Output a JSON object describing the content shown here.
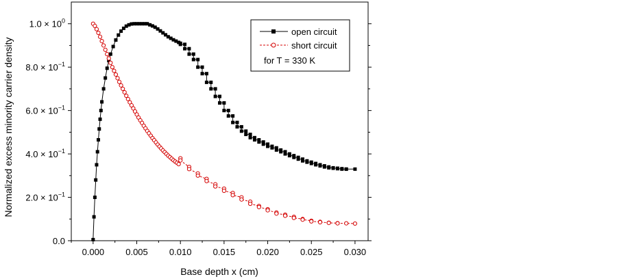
{
  "chart_data": {
    "type": "line",
    "xlabel": "Base depth x (cm)",
    "ylabel": "Normalized excess minority carrier density",
    "xlim": [
      -0.0025,
      0.0315
    ],
    "ylim": [
      0,
      1.1
    ],
    "x_ticks": [
      0.0,
      0.005,
      0.01,
      0.015,
      0.02,
      0.025,
      0.03
    ],
    "x_tick_labels": [
      "0.000",
      "0.005",
      "0.010",
      "0.015",
      "0.020",
      "0.025",
      "0.030"
    ],
    "y_ticks": [
      {
        "value": 0.0,
        "label": "0.0",
        "mantissa": "",
        "exponent": ""
      },
      {
        "value": 0.2,
        "label": "",
        "mantissa": "2.0 × 10",
        "exponent": "−1"
      },
      {
        "value": 0.4,
        "label": "",
        "mantissa": "4.0 × 10",
        "exponent": "−1"
      },
      {
        "value": 0.6,
        "label": "",
        "mantissa": "6.0 × 10",
        "exponent": "−1"
      },
      {
        "value": 0.8,
        "label": "",
        "mantissa": "8.0 × 10",
        "exponent": "−1"
      },
      {
        "value": 1.0,
        "label": "",
        "mantissa": "1.0 × 10",
        "exponent": "0"
      }
    ],
    "grid": false,
    "legend_position": "top-right",
    "annotation": "for T = 330 K",
    "series": [
      {
        "name": "open circuit",
        "color": "#000000",
        "marker": "filled-square",
        "line_style": "solid",
        "points": [
          [
            0.0,
            0.005
          ],
          [
            0.0001,
            0.11
          ],
          [
            0.0002,
            0.2
          ],
          [
            0.0003,
            0.28
          ],
          [
            0.0004,
            0.35
          ],
          [
            0.0005,
            0.41
          ],
          [
            0.0006,
            0.465
          ],
          [
            0.0007,
            0.515
          ],
          [
            0.0008,
            0.56
          ],
          [
            0.0009,
            0.6
          ],
          [
            0.001,
            0.64
          ],
          [
            0.0012,
            0.7
          ],
          [
            0.0014,
            0.75
          ],
          [
            0.0016,
            0.795
          ],
          [
            0.0018,
            0.83
          ],
          [
            0.002,
            0.86
          ],
          [
            0.0023,
            0.895
          ],
          [
            0.0026,
            0.925
          ],
          [
            0.0029,
            0.948
          ],
          [
            0.0032,
            0.966
          ],
          [
            0.0035,
            0.979
          ],
          [
            0.0038,
            0.989
          ],
          [
            0.0041,
            0.995
          ],
          [
            0.0044,
            0.999
          ],
          [
            0.0047,
            1.0
          ],
          [
            0.005,
            1.0
          ],
          [
            0.0053,
            1.0
          ],
          [
            0.0056,
            1.0
          ],
          [
            0.0059,
            1.0
          ],
          [
            0.0062,
            1.0
          ],
          [
            0.0065,
            0.995
          ],
          [
            0.0068,
            0.99
          ],
          [
            0.0071,
            0.984
          ],
          [
            0.0074,
            0.976
          ],
          [
            0.0077,
            0.967
          ],
          [
            0.008,
            0.958
          ],
          [
            0.0083,
            0.949
          ],
          [
            0.0086,
            0.94
          ],
          [
            0.0089,
            0.933
          ],
          [
            0.0092,
            0.926
          ],
          [
            0.0095,
            0.92
          ],
          [
            0.0098,
            0.914
          ],
          [
            0.01,
            0.91
          ],
          [
            0.01,
            0.905
          ],
          [
            0.0105,
            0.905
          ],
          [
            0.0105,
            0.885
          ],
          [
            0.011,
            0.885
          ],
          [
            0.011,
            0.86
          ],
          [
            0.0115,
            0.86
          ],
          [
            0.0115,
            0.835
          ],
          [
            0.012,
            0.835
          ],
          [
            0.012,
            0.8
          ],
          [
            0.0125,
            0.8
          ],
          [
            0.0125,
            0.77
          ],
          [
            0.013,
            0.77
          ],
          [
            0.013,
            0.73
          ],
          [
            0.0135,
            0.73
          ],
          [
            0.0135,
            0.7
          ],
          [
            0.014,
            0.7
          ],
          [
            0.014,
            0.665
          ],
          [
            0.0145,
            0.665
          ],
          [
            0.0145,
            0.635
          ],
          [
            0.015,
            0.635
          ],
          [
            0.015,
            0.6
          ],
          [
            0.0155,
            0.6
          ],
          [
            0.0155,
            0.575
          ],
          [
            0.016,
            0.575
          ],
          [
            0.016,
            0.545
          ],
          [
            0.0165,
            0.545
          ],
          [
            0.0165,
            0.525
          ],
          [
            0.017,
            0.525
          ],
          [
            0.017,
            0.505
          ],
          [
            0.0175,
            0.505
          ],
          [
            0.0175,
            0.49
          ],
          [
            0.018,
            0.49
          ],
          [
            0.018,
            0.475
          ],
          [
            0.0185,
            0.475
          ],
          [
            0.0185,
            0.465
          ],
          [
            0.019,
            0.465
          ],
          [
            0.019,
            0.455
          ],
          [
            0.0195,
            0.455
          ],
          [
            0.0195,
            0.445
          ],
          [
            0.02,
            0.445
          ],
          [
            0.02,
            0.435
          ],
          [
            0.0205,
            0.435
          ],
          [
            0.0205,
            0.428
          ],
          [
            0.021,
            0.428
          ],
          [
            0.021,
            0.418
          ],
          [
            0.0215,
            0.418
          ],
          [
            0.0215,
            0.41
          ],
          [
            0.022,
            0.41
          ],
          [
            0.022,
            0.4
          ],
          [
            0.0225,
            0.4
          ],
          [
            0.0225,
            0.392
          ],
          [
            0.023,
            0.392
          ],
          [
            0.023,
            0.384
          ],
          [
            0.0235,
            0.384
          ],
          [
            0.0235,
            0.376
          ],
          [
            0.024,
            0.376
          ],
          [
            0.024,
            0.368
          ],
          [
            0.0245,
            0.368
          ],
          [
            0.0245,
            0.362
          ],
          [
            0.025,
            0.362
          ],
          [
            0.025,
            0.356
          ],
          [
            0.0255,
            0.356
          ],
          [
            0.0255,
            0.35
          ],
          [
            0.026,
            0.35
          ],
          [
            0.026,
            0.345
          ],
          [
            0.0265,
            0.345
          ],
          [
            0.0265,
            0.34
          ],
          [
            0.027,
            0.34
          ],
          [
            0.027,
            0.336
          ],
          [
            0.0275,
            0.336
          ],
          [
            0.0275,
            0.334
          ],
          [
            0.028,
            0.334
          ],
          [
            0.028,
            0.332
          ],
          [
            0.0285,
            0.332
          ],
          [
            0.0285,
            0.33
          ],
          [
            0.029,
            0.33
          ],
          [
            0.029,
            0.33
          ],
          [
            0.03,
            0.33
          ]
        ]
      },
      {
        "name": "short circuit",
        "color": "#d40000",
        "marker": "open-circle",
        "line_style": "dashed",
        "points": [
          [
            0.0,
            1.0
          ],
          [
            0.0002,
            0.99
          ],
          [
            0.0004,
            0.975
          ],
          [
            0.0006,
            0.958
          ],
          [
            0.0008,
            0.94
          ],
          [
            0.001,
            0.92
          ],
          [
            0.0012,
            0.9
          ],
          [
            0.0014,
            0.88
          ],
          [
            0.0016,
            0.86
          ],
          [
            0.0018,
            0.84
          ],
          [
            0.002,
            0.82
          ],
          [
            0.0022,
            0.8
          ],
          [
            0.0024,
            0.783
          ],
          [
            0.0026,
            0.766
          ],
          [
            0.0028,
            0.749
          ],
          [
            0.003,
            0.732
          ],
          [
            0.0032,
            0.716
          ],
          [
            0.0034,
            0.7
          ],
          [
            0.0036,
            0.684
          ],
          [
            0.0038,
            0.668
          ],
          [
            0.004,
            0.653
          ],
          [
            0.0042,
            0.638
          ],
          [
            0.0044,
            0.624
          ],
          [
            0.0046,
            0.61
          ],
          [
            0.0048,
            0.596
          ],
          [
            0.005,
            0.582
          ],
          [
            0.0052,
            0.568
          ],
          [
            0.0054,
            0.555
          ],
          [
            0.0056,
            0.543
          ],
          [
            0.0058,
            0.53
          ],
          [
            0.006,
            0.518
          ],
          [
            0.0062,
            0.506
          ],
          [
            0.0064,
            0.495
          ],
          [
            0.0066,
            0.484
          ],
          [
            0.0068,
            0.473
          ],
          [
            0.007,
            0.463
          ],
          [
            0.0072,
            0.453
          ],
          [
            0.0074,
            0.443
          ],
          [
            0.0076,
            0.434
          ],
          [
            0.0078,
            0.425
          ],
          [
            0.008,
            0.416
          ],
          [
            0.0082,
            0.408
          ],
          [
            0.0084,
            0.4
          ],
          [
            0.0086,
            0.392
          ],
          [
            0.0088,
            0.385
          ],
          [
            0.009,
            0.378
          ],
          [
            0.0092,
            0.371
          ],
          [
            0.0094,
            0.365
          ],
          [
            0.0096,
            0.359
          ],
          [
            0.0098,
            0.353
          ],
          [
            0.01,
            0.38
          ],
          [
            0.01,
            0.37
          ],
          [
            0.011,
            0.34
          ],
          [
            0.011,
            0.33
          ],
          [
            0.012,
            0.31
          ],
          [
            0.012,
            0.3
          ],
          [
            0.013,
            0.285
          ],
          [
            0.013,
            0.275
          ],
          [
            0.014,
            0.26
          ],
          [
            0.014,
            0.25
          ],
          [
            0.015,
            0.24
          ],
          [
            0.015,
            0.23
          ],
          [
            0.016,
            0.22
          ],
          [
            0.016,
            0.21
          ],
          [
            0.017,
            0.2
          ],
          [
            0.017,
            0.19
          ],
          [
            0.018,
            0.18
          ],
          [
            0.018,
            0.17
          ],
          [
            0.019,
            0.16
          ],
          [
            0.019,
            0.155
          ],
          [
            0.02,
            0.145
          ],
          [
            0.02,
            0.14
          ],
          [
            0.021,
            0.13
          ],
          [
            0.021,
            0.125
          ],
          [
            0.022,
            0.12
          ],
          [
            0.022,
            0.115
          ],
          [
            0.023,
            0.11
          ],
          [
            0.023,
            0.105
          ],
          [
            0.024,
            0.1
          ],
          [
            0.024,
            0.097
          ],
          [
            0.025,
            0.092
          ],
          [
            0.025,
            0.089
          ],
          [
            0.026,
            0.087
          ],
          [
            0.026,
            0.085
          ],
          [
            0.027,
            0.083
          ],
          [
            0.027,
            0.082
          ],
          [
            0.028,
            0.081
          ],
          [
            0.028,
            0.08
          ],
          [
            0.029,
            0.08
          ],
          [
            0.03,
            0.079
          ]
        ]
      }
    ]
  }
}
